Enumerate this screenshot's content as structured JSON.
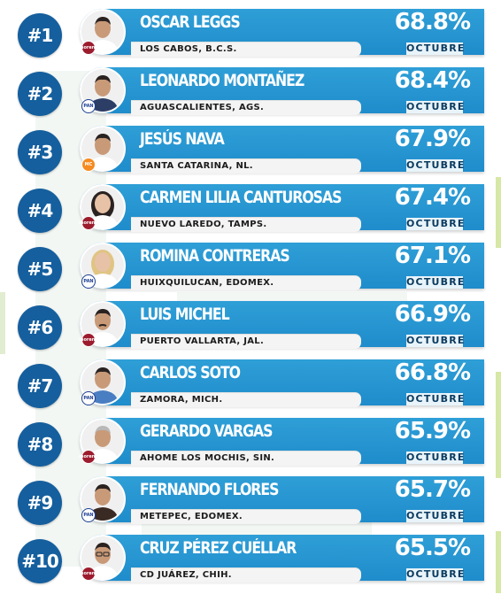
{
  "month_label": "OCTUBRE",
  "rankings": [
    {
      "rank": "#1",
      "name": "OSCAR LEGGS",
      "location": "LOS CABOS, B.C.S.",
      "percent": "68.8%",
      "party": "morena",
      "portrait": "man-curly-hair"
    },
    {
      "rank": "#2",
      "name": "LEONARDO MONTAÑEZ",
      "location": "AGUASCALIENTES, AGS.",
      "percent": "68.4%",
      "party": "pan",
      "portrait": "man-suit"
    },
    {
      "rank": "#3",
      "name": "JESÚS NAVA",
      "location": "SANTA CATARINA, NL.",
      "percent": "67.9%",
      "party": "mc",
      "portrait": "man-smiling"
    },
    {
      "rank": "#4",
      "name": "CARMEN LILIA CANTUROSAS",
      "location": "NUEVO LAREDO, TAMPS.",
      "percent": "67.4%",
      "party": "morena",
      "portrait": "woman-dark-hair"
    },
    {
      "rank": "#5",
      "name": "ROMINA CONTRERAS",
      "location": "HUIXQUILUCAN, EDOMEX.",
      "percent": "67.1%",
      "party": "pan",
      "portrait": "woman-blonde"
    },
    {
      "rank": "#6",
      "name": "LUIS MICHEL",
      "location": "PUERTO VALLARTA, JAL.",
      "percent": "66.9%",
      "party": "morena",
      "portrait": "man-mustache"
    },
    {
      "rank": "#7",
      "name": "CARLOS SOTO",
      "location": "ZAMORA, MICH.",
      "percent": "66.8%",
      "party": "pan",
      "portrait": "man-shirt"
    },
    {
      "rank": "#8",
      "name": "GERARDO VARGAS",
      "location": "AHOME LOS MOCHIS, SIN.",
      "percent": "65.9%",
      "party": "morena",
      "portrait": "man-gray-hair"
    },
    {
      "rank": "#9",
      "name": "FERNANDO FLORES",
      "location": "METEPEC, EDOMEX.",
      "percent": "65.7%",
      "party": "pan",
      "portrait": "man-smiling-dark"
    },
    {
      "rank": "#10",
      "name": "CRUZ PÉREZ CUÉLLAR",
      "location": "CD JUÁREZ, CHIH.",
      "percent": "65.5%",
      "party": "morena",
      "portrait": "man-glasses"
    }
  ],
  "party_logo_text": {
    "morena": "morena",
    "pan": "PAN",
    "mc": "MC"
  },
  "colors": {
    "rank_circle": "#155f9e",
    "card": "#2596d2",
    "card_text": "#ffffff",
    "strip": "#f4f4f4",
    "strip_text": "#1c1c1c",
    "month_text": "#0a3a5f"
  }
}
